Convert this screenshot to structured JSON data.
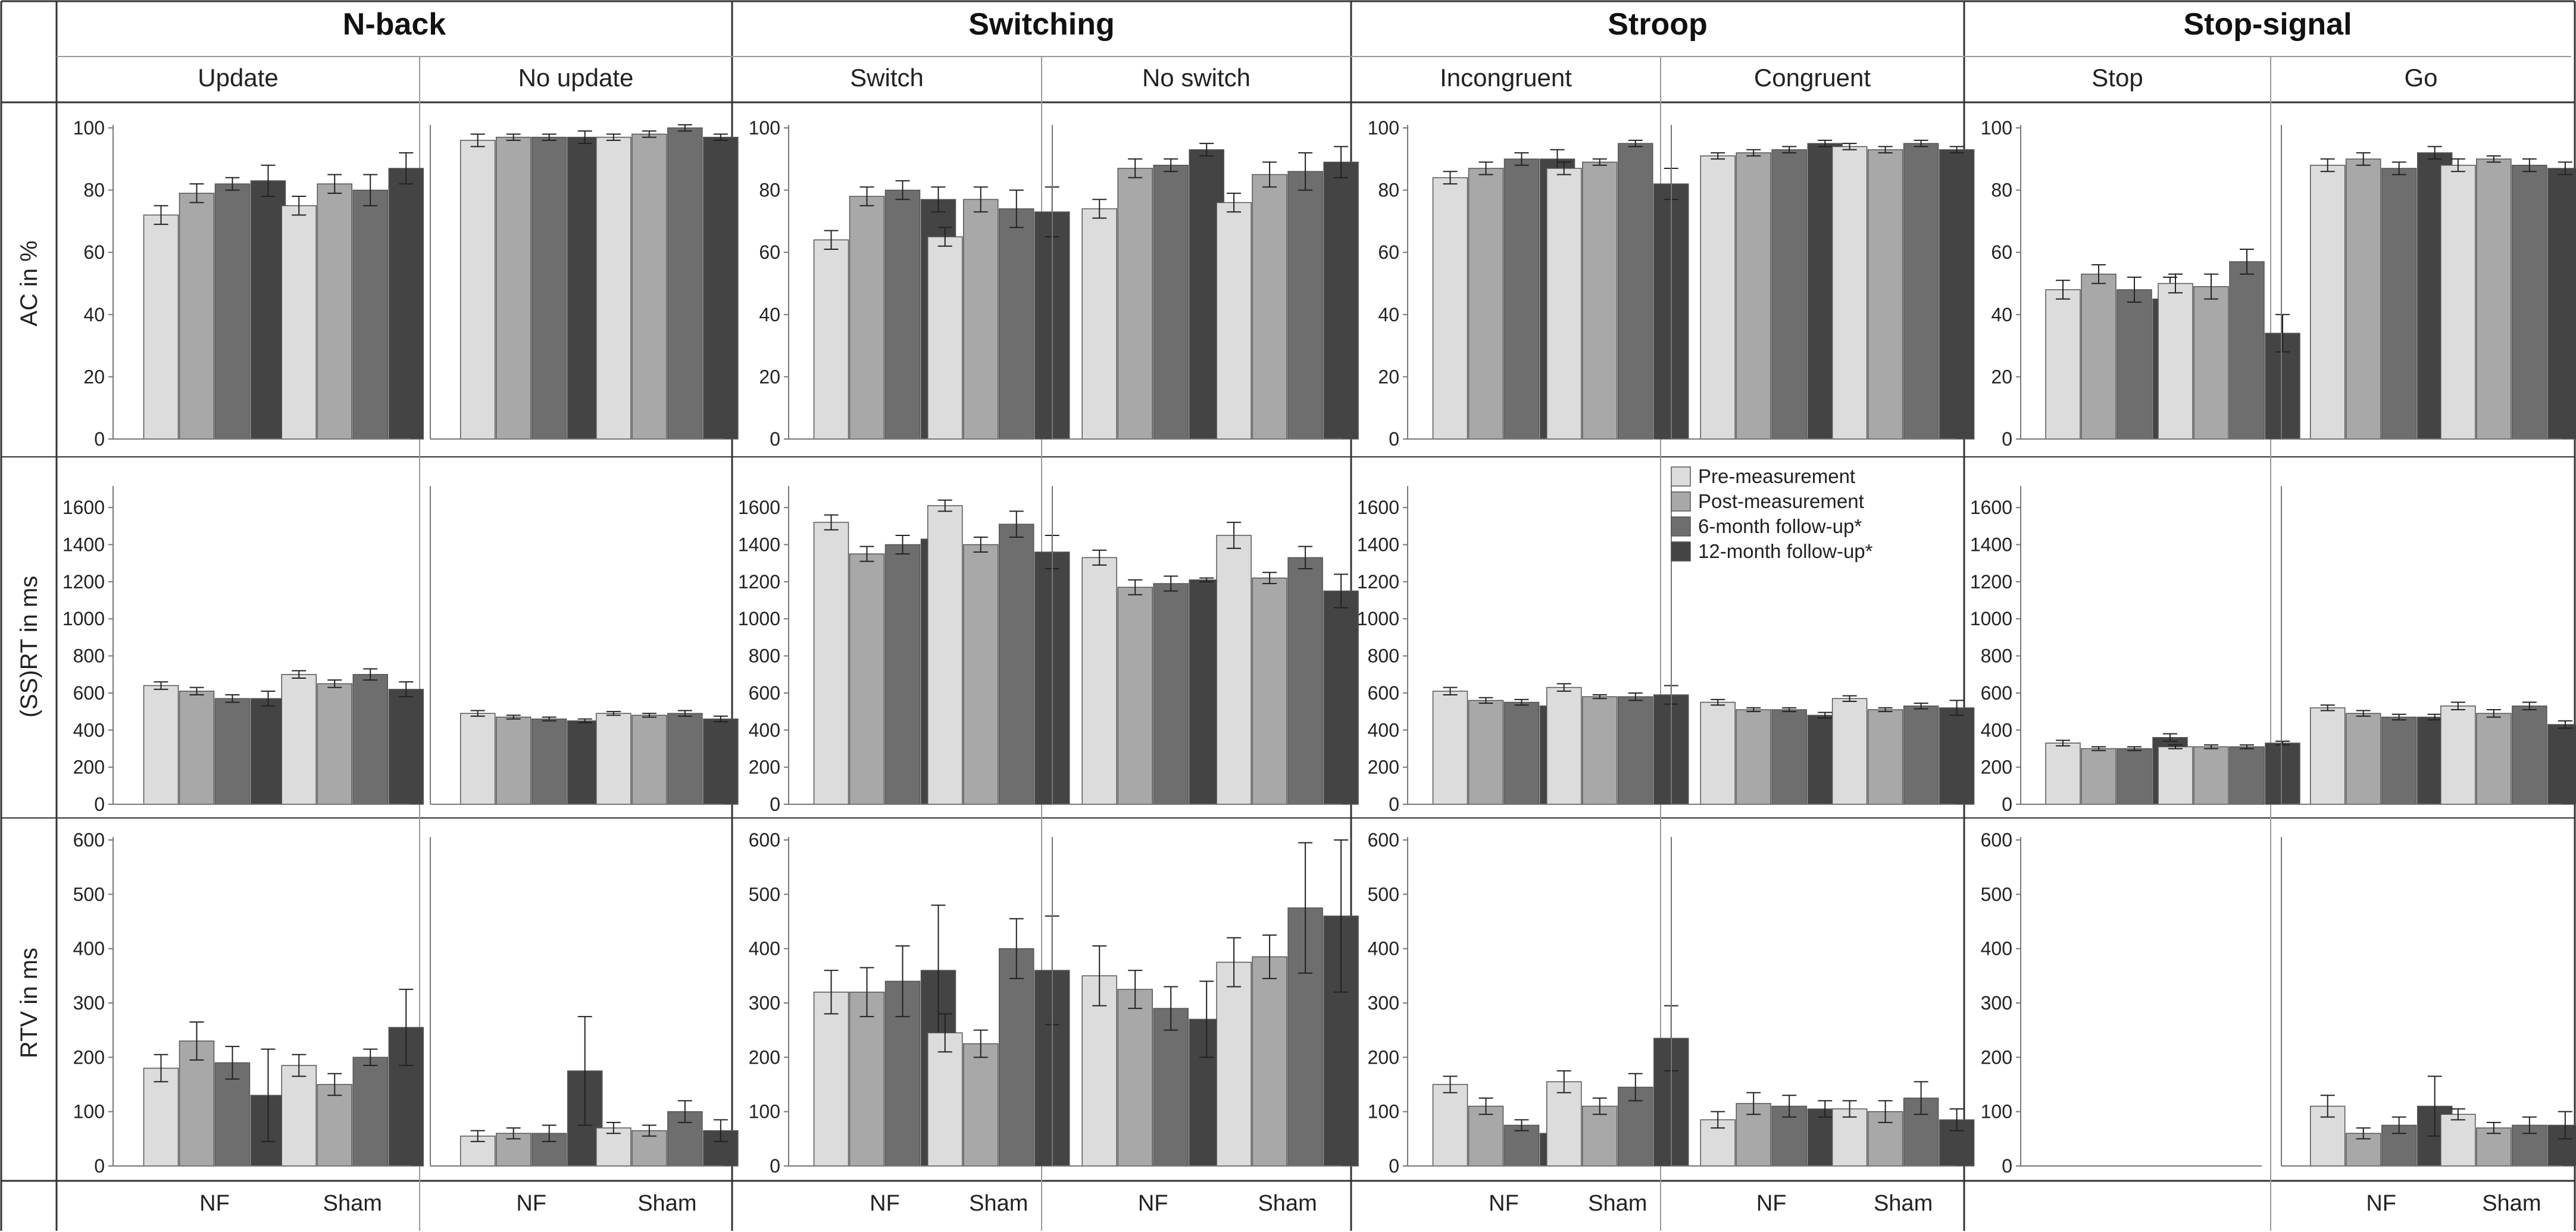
{
  "chart_data": {
    "type": "bar",
    "tasks": [
      {
        "name": "N-back",
        "conditions": [
          "Update",
          "No update"
        ]
      },
      {
        "name": "Switching",
        "conditions": [
          "Switch",
          "No switch"
        ]
      },
      {
        "name": "Stroop",
        "conditions": [
          "Incongruent",
          "Congruent"
        ]
      },
      {
        "name": "Stop-signal",
        "conditions": [
          "Stop",
          "Go"
        ]
      }
    ],
    "groups": [
      "NF",
      "Sham"
    ],
    "legend": [
      "Pre-measurement",
      "Post-measurement",
      "6-month follow-up*",
      "12-month follow-up*"
    ],
    "series_colors": [
      "#dcdcdc",
      "#a8a8a8",
      "#6e6e6e",
      "#444444"
    ],
    "rows": [
      {
        "ylabel": "AC in %",
        "ylim": [
          0,
          100
        ],
        "yticks": [
          0,
          20,
          40,
          60,
          80,
          100
        ],
        "panels": [
          {
            "NF": {
              "values": [
                72,
                79,
                82,
                83
              ],
              "errors": [
                3,
                3,
                2,
                5
              ]
            },
            "Sham": {
              "values": [
                75,
                82,
                80,
                87
              ],
              "errors": [
                3,
                3,
                5,
                5
              ]
            }
          },
          {
            "NF": {
              "values": [
                96,
                97,
                97,
                97
              ],
              "errors": [
                2,
                1,
                1,
                2
              ]
            },
            "Sham": {
              "values": [
                97,
                98,
                100,
                97
              ],
              "errors": [
                1,
                1,
                1,
                1
              ]
            }
          },
          {
            "NF": {
              "values": [
                64,
                78,
                80,
                77
              ],
              "errors": [
                3,
                3,
                3,
                4
              ]
            },
            "Sham": {
              "values": [
                65,
                77,
                74,
                73
              ],
              "errors": [
                3,
                4,
                6,
                8
              ]
            }
          },
          {
            "NF": {
              "values": [
                74,
                87,
                88,
                93
              ],
              "errors": [
                3,
                3,
                2,
                2
              ]
            },
            "Sham": {
              "values": [
                76,
                85,
                86,
                89
              ],
              "errors": [
                3,
                4,
                6,
                5
              ]
            }
          },
          {
            "NF": {
              "values": [
                84,
                87,
                90,
                90
              ],
              "errors": [
                2,
                2,
                2,
                3
              ]
            },
            "Sham": {
              "values": [
                87,
                89,
                95,
                82
              ],
              "errors": [
                2,
                1,
                1,
                5
              ]
            }
          },
          {
            "NF": {
              "values": [
                91,
                92,
                93,
                95
              ],
              "errors": [
                1,
                1,
                1,
                1
              ]
            },
            "Sham": {
              "values": [
                94,
                93,
                95,
                93
              ],
              "errors": [
                1,
                1,
                1,
                1
              ]
            }
          },
          {
            "NF": {
              "values": [
                48,
                53,
                48,
                45
              ],
              "errors": [
                3,
                3,
                4,
                7
              ]
            },
            "Sham": {
              "values": [
                50,
                49,
                57,
                34
              ],
              "errors": [
                3,
                4,
                4,
                6
              ]
            }
          },
          {
            "NF": {
              "values": [
                88,
                90,
                87,
                92
              ],
              "errors": [
                2,
                2,
                2,
                2
              ]
            },
            "Sham": {
              "values": [
                88,
                90,
                88,
                87
              ],
              "errors": [
                2,
                1,
                2,
                2
              ]
            }
          }
        ]
      },
      {
        "ylabel": "(SS)RT in ms",
        "ylim": [
          0,
          1700
        ],
        "yticks": [
          0,
          200,
          400,
          600,
          800,
          1000,
          1200,
          1400,
          1600
        ],
        "panels": [
          {
            "NF": {
              "values": [
                640,
                610,
                570,
                570
              ],
              "errors": [
                20,
                20,
                20,
                40
              ]
            },
            "Sham": {
              "values": [
                700,
                650,
                700,
                620
              ],
              "errors": [
                20,
                20,
                30,
                40
              ]
            }
          },
          {
            "NF": {
              "values": [
                490,
                470,
                460,
                450
              ],
              "errors": [
                15,
                10,
                10,
                10
              ]
            },
            "Sham": {
              "values": [
                490,
                480,
                490,
                460
              ],
              "errors": [
                10,
                10,
                15,
                15
              ]
            }
          },
          {
            "NF": {
              "values": [
                1520,
                1350,
                1400,
                1430
              ],
              "errors": [
                40,
                40,
                50,
                15
              ]
            },
            "Sham": {
              "values": [
                1610,
                1400,
                1510,
                1360
              ],
              "errors": [
                30,
                40,
                70,
                90
              ]
            }
          },
          {
            "NF": {
              "values": [
                1330,
                1170,
                1190,
                1210
              ],
              "errors": [
                40,
                40,
                40,
                10
              ]
            },
            "Sham": {
              "values": [
                1450,
                1220,
                1330,
                1150
              ],
              "errors": [
                70,
                30,
                60,
                90
              ]
            }
          },
          {
            "NF": {
              "values": [
                610,
                560,
                550,
                530
              ],
              "errors": [
                20,
                15,
                15,
                20
              ]
            },
            "Sham": {
              "values": [
                630,
                580,
                580,
                590
              ],
              "errors": [
                20,
                10,
                20,
                50
              ]
            }
          },
          {
            "NF": {
              "values": [
                550,
                510,
                510,
                480
              ],
              "errors": [
                15,
                10,
                10,
                15
              ]
            },
            "Sham": {
              "values": [
                570,
                510,
                530,
                520
              ],
              "errors": [
                15,
                10,
                15,
                40
              ]
            }
          },
          {
            "NF": {
              "values": [
                330,
                300,
                300,
                360
              ],
              "errors": [
                15,
                10,
                10,
                20
              ]
            },
            "Sham": {
              "values": [
                310,
                310,
                310,
                330
              ],
              "errors": [
                10,
                10,
                10,
                10
              ]
            }
          },
          {
            "NF": {
              "values": [
                520,
                490,
                470,
                470
              ],
              "errors": [
                15,
                15,
                15,
                15
              ]
            },
            "Sham": {
              "values": [
                530,
                490,
                530,
                430
              ],
              "errors": [
                20,
                20,
                20,
                20
              ]
            }
          }
        ]
      },
      {
        "ylabel": "RTV in ms",
        "ylim": [
          0,
          600
        ],
        "yticks": [
          0,
          100,
          200,
          300,
          400,
          500,
          600
        ],
        "panels": [
          {
            "NF": {
              "values": [
                180,
                230,
                190,
                130
              ],
              "errors": [
                25,
                35,
                30,
                85
              ]
            },
            "Sham": {
              "values": [
                185,
                150,
                200,
                255
              ],
              "errors": [
                20,
                20,
                15,
                70
              ]
            }
          },
          {
            "NF": {
              "values": [
                55,
                60,
                60,
                175
              ],
              "errors": [
                10,
                10,
                15,
                100
              ]
            },
            "Sham": {
              "values": [
                70,
                65,
                100,
                65
              ],
              "errors": [
                10,
                10,
                20,
                20
              ]
            }
          },
          {
            "NF": {
              "values": [
                320,
                320,
                340,
                360
              ],
              "errors": [
                40,
                45,
                65,
                120
              ]
            },
            "Sham": {
              "values": [
                245,
                225,
                400,
                360
              ],
              "errors": [
                35,
                25,
                55,
                100
              ]
            }
          },
          {
            "NF": {
              "values": [
                350,
                325,
                290,
                270
              ],
              "errors": [
                55,
                35,
                40,
                70
              ]
            },
            "Sham": {
              "values": [
                375,
                385,
                475,
                460
              ],
              "errors": [
                45,
                40,
                120,
                140
              ]
            }
          },
          {
            "NF": {
              "values": [
                150,
                110,
                75,
                60
              ],
              "errors": [
                15,
                15,
                10,
                10
              ]
            },
            "Sham": {
              "values": [
                155,
                110,
                145,
                235
              ],
              "errors": [
                20,
                15,
                25,
                60
              ]
            }
          },
          {
            "NF": {
              "values": [
                85,
                115,
                110,
                105
              ],
              "errors": [
                15,
                20,
                20,
                15
              ]
            },
            "Sham": {
              "values": [
                105,
                100,
                125,
                85
              ],
              "errors": [
                15,
                20,
                30,
                20
              ]
            }
          },
          {
            "NF": null,
            "Sham": null
          },
          {
            "NF": {
              "values": [
                110,
                60,
                75,
                110
              ],
              "errors": [
                20,
                10,
                15,
                55
              ]
            },
            "Sham": {
              "values": [
                95,
                70,
                75,
                75
              ],
              "errors": [
                10,
                10,
                15,
                25
              ]
            }
          }
        ]
      }
    ]
  }
}
